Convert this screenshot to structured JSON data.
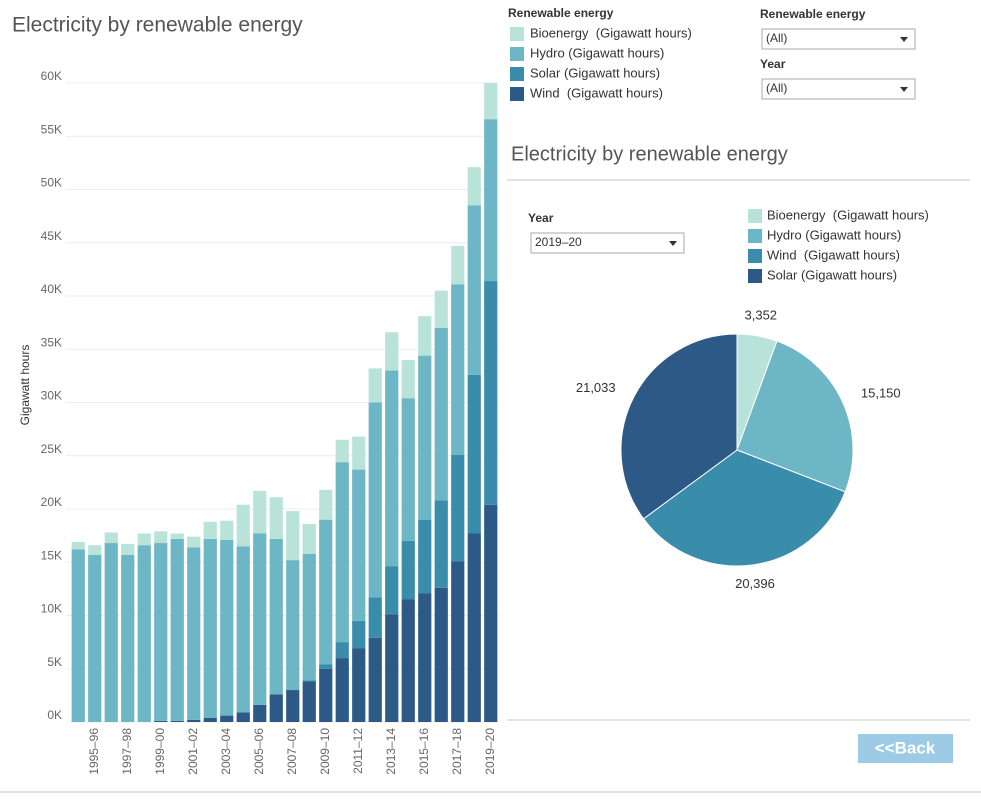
{
  "chart_data": [
    {
      "type": "bar",
      "stacked": true,
      "title": "Electricity by renewable energy",
      "y_label": "Gigawatt hours",
      "legend_title": "Renewable energy",
      "categories": [
        null,
        "1995–96",
        null,
        "1997–98",
        null,
        "1999–00",
        null,
        "2001–02",
        null,
        "2003–04",
        null,
        "2005–06",
        null,
        "2007–08",
        null,
        "2009–10",
        null,
        "2011–12",
        null,
        "2013–14",
        null,
        "2015–16",
        null,
        "2017–18",
        null,
        "2019–20"
      ],
      "series": [
        {
          "name": "Bioenergy  (Gigawatt hours)",
          "color": "#b9e3d9",
          "values": [
            700,
            900,
            1000,
            1000,
            1100,
            1100,
            500,
            1000,
            1600,
            1800,
            3900,
            4000,
            3900,
            4600,
            2800,
            2800,
            2100,
            3100,
            3200,
            3600,
            3600,
            3700,
            3500,
            3600,
            3600,
            3400
          ]
        },
        {
          "name": "Hydro (Gigawatt hours)",
          "color": "#6db6c5",
          "values": [
            16200,
            15700,
            16800,
            15700,
            16600,
            16700,
            17100,
            16200,
            16800,
            16500,
            15600,
            16100,
            14600,
            12200,
            11900,
            13600,
            16900,
            14200,
            18300,
            18400,
            13400,
            15400,
            16200,
            16000,
            15900,
            15200
          ]
        },
        {
          "name": "Solar (Gigawatt hours)",
          "color": "#3a8cab",
          "values": [
            0,
            0,
            0,
            0,
            0,
            0,
            0,
            0,
            0,
            0,
            0,
            0,
            0,
            0,
            100,
            400,
            1500,
            2600,
            3800,
            4500,
            5500,
            6900,
            8200,
            10000,
            14900,
            21000
          ]
        },
        {
          "name": "Wind  (Gigawatt hours)",
          "color": "#2c5985",
          "values": [
            0,
            0,
            0,
            0,
            0,
            100,
            100,
            200,
            400,
            600,
            900,
            1600,
            2600,
            3000,
            3800,
            5000,
            6000,
            6900,
            7900,
            10100,
            11500,
            12100,
            12600,
            15100,
            17700,
            20400
          ]
        }
      ],
      "ylim": [
        0,
        63000
      ],
      "yticks": [
        {
          "value": 0,
          "label": "0K"
        },
        {
          "value": 5000,
          "label": "5K"
        },
        {
          "value": 10000,
          "label": "10K"
        },
        {
          "value": 15000,
          "label": "15K"
        },
        {
          "value": 20000,
          "label": "20K"
        },
        {
          "value": 25000,
          "label": "25K"
        },
        {
          "value": 30000,
          "label": "30K"
        },
        {
          "value": 35000,
          "label": "35K"
        },
        {
          "value": 40000,
          "label": "40K"
        },
        {
          "value": 45000,
          "label": "45K"
        },
        {
          "value": 50000,
          "label": "50K"
        },
        {
          "value": 55000,
          "label": "55K"
        },
        {
          "value": 60000,
          "label": "60K"
        }
      ],
      "grid": true
    },
    {
      "type": "pie",
      "title": "Electricity by renewable energy",
      "categories": [
        "Bioenergy  (Gigawatt hours)",
        "Hydro (Gigawatt hours)",
        "Wind  (Gigawatt hours)",
        "Solar (Gigawatt hours)"
      ],
      "values": [
        3352,
        15150,
        20396,
        21033
      ],
      "value_labels": [
        "3,352",
        "15,150",
        "20,396",
        "21,033"
      ],
      "colors": [
        "#b9e3d9",
        "#6db6c5",
        "#3a8cab",
        "#2c5985"
      ]
    }
  ],
  "filters": [
    {
      "label": "Renewable energy",
      "value": "(All)"
    },
    {
      "label": "Year",
      "value": "(All)"
    }
  ],
  "pie_filter": {
    "label": "Year",
    "value": "2019–20"
  },
  "button": "<<Back"
}
